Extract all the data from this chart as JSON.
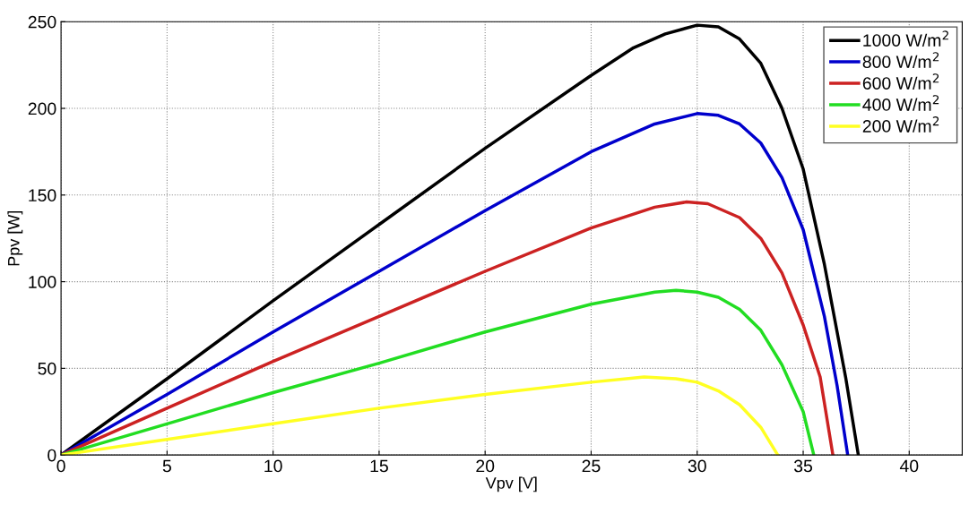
{
  "chart_data": {
    "type": "line",
    "xlabel": "Vpv [V]",
    "ylabel": "Ppv [W]",
    "xlim": [
      0,
      42.5
    ],
    "ylim": [
      0,
      250
    ],
    "xticks": [
      0,
      5,
      10,
      15,
      20,
      25,
      30,
      35,
      40
    ],
    "yticks": [
      0,
      50,
      100,
      150,
      200,
      250
    ],
    "grid": true,
    "legend": "top right",
    "line_style": "solid",
    "series": [
      {
        "name": "1000 W/m$^{2}$",
        "color": "#000000",
        "x": [
          0,
          5,
          10,
          15,
          20,
          25,
          27,
          28.5,
          30,
          31,
          32,
          33,
          34,
          35,
          36,
          37,
          37.6
        ],
        "values": [
          0,
          44,
          89,
          133,
          177,
          219,
          235,
          243,
          248,
          247,
          240,
          226,
          200,
          165,
          110,
          45,
          0
        ]
      },
      {
        "name": "800 W/m$^{2}$",
        "color": "#0000cc",
        "x": [
          0,
          5,
          10,
          15,
          20,
          25,
          28,
          30,
          31,
          32,
          33,
          34,
          35,
          36,
          36.6,
          37.1
        ],
        "values": [
          0,
          35,
          71,
          106,
          141,
          175,
          191,
          197,
          196,
          191,
          180,
          160,
          130,
          80,
          40,
          0
        ]
      },
      {
        "name": "600 W/m$^{2}$",
        "color": "#cc2222",
        "x": [
          0,
          5,
          10,
          15,
          20,
          25,
          28,
          29.5,
          30.5,
          32,
          33,
          34,
          35,
          35.8,
          36.4
        ],
        "values": [
          0,
          27,
          54,
          80,
          106,
          131,
          143,
          146,
          145,
          137,
          125,
          105,
          75,
          45,
          0
        ]
      },
      {
        "name": "400 W/m$^{2}$",
        "color": "#22dd22",
        "x": [
          0,
          5,
          10,
          15,
          20,
          25,
          28,
          29,
          30,
          31,
          32,
          33,
          34,
          35,
          35.5
        ],
        "values": [
          0,
          18,
          36,
          53,
          71,
          87,
          94,
          95,
          94,
          91,
          84,
          72,
          52,
          25,
          0
        ]
      },
      {
        "name": "200 W/m$^{2}$",
        "color": "#ffff22",
        "x": [
          0,
          5,
          10,
          15,
          20,
          25,
          27.5,
          29,
          30,
          31,
          32,
          33,
          33.8
        ],
        "values": [
          0,
          9,
          18,
          27,
          35,
          42,
          45,
          44,
          42,
          37,
          29,
          16,
          0
        ]
      }
    ]
  }
}
